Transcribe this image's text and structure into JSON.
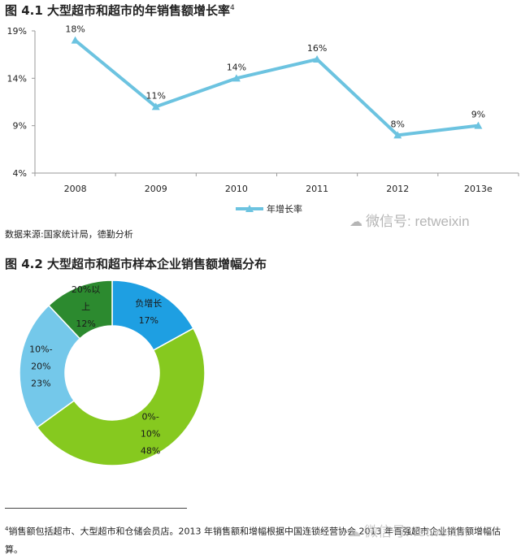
{
  "figure1": {
    "title": "图 4.1 大型超市和超市的年销售额增长率",
    "title_footnote_ref": "4",
    "source": "数据来源:国家统计局，德勤分析"
  },
  "figure2": {
    "title": "图 4.2 大型超市和超市样本企业销售额增幅分布"
  },
  "watermark": {
    "icon": "wechat-icon",
    "text": "微信号: retweixin"
  },
  "footnote": {
    "ref": "4",
    "text": "销售额包括超市、大型超市和仓储会员店。2013 年销售额和增幅根据中国连锁经营协会 2013 年百强超市企业销售额增幅估算。"
  },
  "chart_data": [
    {
      "type": "line",
      "title": "",
      "categories": [
        "2008",
        "2009",
        "2010",
        "2011",
        "2012",
        "2013e"
      ],
      "series": [
        {
          "name": "年增长率",
          "values": [
            18,
            11,
            14,
            16,
            8,
            9
          ],
          "data_labels": [
            "18%",
            "11%",
            "14%",
            "16%",
            "8%",
            "9%"
          ],
          "color": "#6cc3e0"
        }
      ],
      "y_ticks": [
        4,
        9,
        14,
        19
      ],
      "y_tick_labels": [
        "4%",
        "9%",
        "14%",
        "19%"
      ],
      "ylim": [
        4,
        19
      ],
      "grid": false,
      "legend": "bottom-center"
    },
    {
      "type": "pie",
      "donut": true,
      "title": "",
      "slices": [
        {
          "label_lines": [
            "负增长"
          ],
          "value": 17,
          "value_label": "17%",
          "color": "#1e9fe2"
        },
        {
          "label_lines": [
            "0%-",
            "10%"
          ],
          "value": 48,
          "value_label": "48%",
          "color": "#86c91f"
        },
        {
          "label_lines": [
            "10%-",
            "20%"
          ],
          "value": 23,
          "value_label": "23%",
          "color": "#74c8ea"
        },
        {
          "label_lines": [
            "20%以",
            "上"
          ],
          "value": 12,
          "value_label": "12%",
          "color": "#2c8a2f"
        }
      ],
      "legend": "none"
    }
  ]
}
